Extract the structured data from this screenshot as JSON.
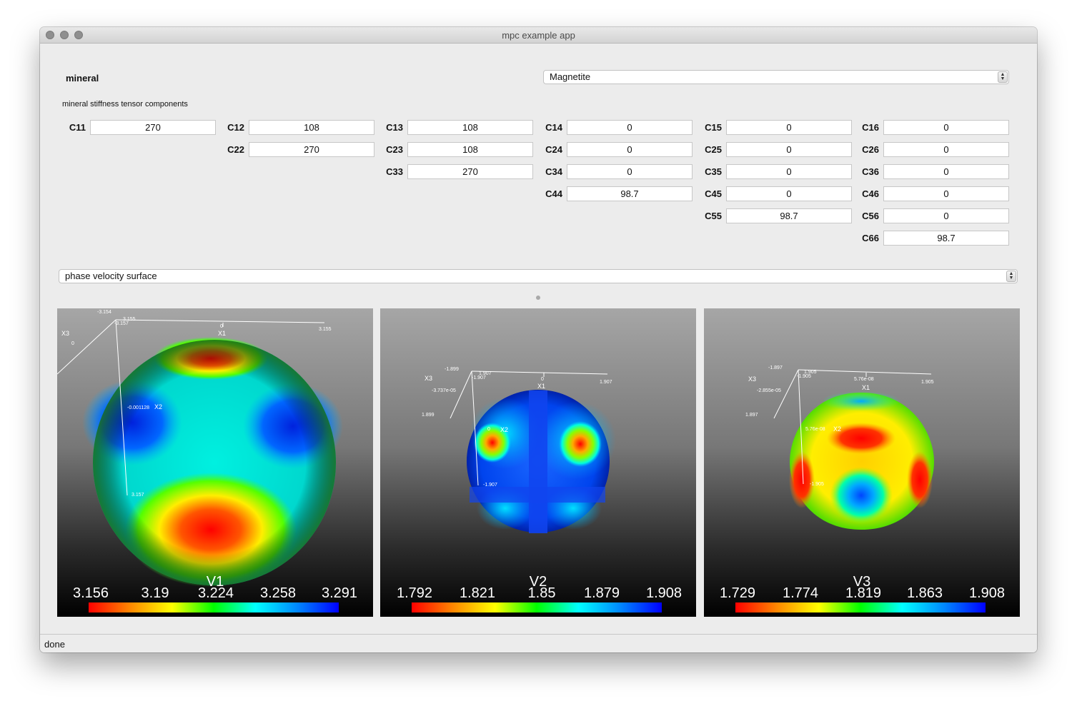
{
  "window": {
    "title": "mpc example app"
  },
  "mineral": {
    "label": "mineral",
    "selected": "Magnetite"
  },
  "tensor": {
    "section_label": "mineral stiffness tensor components",
    "rows": [
      [
        {
          "name": "C11",
          "value": "270"
        },
        {
          "name": "C12",
          "value": "108"
        },
        {
          "name": "C13",
          "value": "108"
        },
        {
          "name": "C14",
          "value": "0"
        },
        {
          "name": "C15",
          "value": "0"
        },
        {
          "name": "C16",
          "value": "0"
        }
      ],
      [
        {
          "name": "C22",
          "value": "270"
        },
        {
          "name": "C23",
          "value": "108"
        },
        {
          "name": "C24",
          "value": "0"
        },
        {
          "name": "C25",
          "value": "0"
        },
        {
          "name": "C26",
          "value": "0"
        }
      ],
      [
        {
          "name": "C33",
          "value": "270"
        },
        {
          "name": "C34",
          "value": "0"
        },
        {
          "name": "C35",
          "value": "0"
        },
        {
          "name": "C36",
          "value": "0"
        }
      ],
      [
        {
          "name": "C44",
          "value": "98.7"
        },
        {
          "name": "C45",
          "value": "0"
        },
        {
          "name": "C46",
          "value": "0"
        }
      ],
      [
        {
          "name": "C55",
          "value": "98.7"
        },
        {
          "name": "C56",
          "value": "0"
        }
      ],
      [
        {
          "name": "C66",
          "value": "98.7"
        }
      ]
    ]
  },
  "plot_type": {
    "selected": "phase velocity surface"
  },
  "plots": [
    {
      "title": "V1",
      "ticks": [
        "3.156",
        "3.19",
        "3.224",
        "3.258",
        "3.291"
      ],
      "axes": {
        "x1": "X1",
        "x2": "X2",
        "x3": "X3",
        "labels": [
          "-3.154",
          "3.155",
          "-3.157",
          "0",
          "3.155",
          "0",
          "-0.001128",
          "3.157"
        ]
      }
    },
    {
      "title": "V2",
      "ticks": [
        "1.792",
        "1.821",
        "1.85",
        "1.879",
        "1.908"
      ],
      "axes": {
        "x1": "X1",
        "x2": "X2",
        "x3": "X3",
        "labels": [
          "-1.899",
          "1.907",
          "-1.907",
          "0",
          "1.907",
          "-3.737e-05",
          "0",
          "-1.907",
          "1.899"
        ]
      }
    },
    {
      "title": "V3",
      "ticks": [
        "1.729",
        "1.774",
        "1.819",
        "1.863",
        "1.908"
      ],
      "axes": {
        "x1": "X1",
        "x2": "X2",
        "x3": "X3",
        "labels": [
          "-1.897",
          "1.905",
          "-1.905",
          "5.76e-08",
          "1.905",
          "-2.855e-05",
          "5.76e-08",
          "-1.905",
          "1.897"
        ]
      }
    }
  ],
  "status": {
    "text": "done"
  },
  "colors": {
    "window_bg": "#ececec",
    "colorbar_start": "#ff0000",
    "colorbar_end": "#0000ff"
  }
}
